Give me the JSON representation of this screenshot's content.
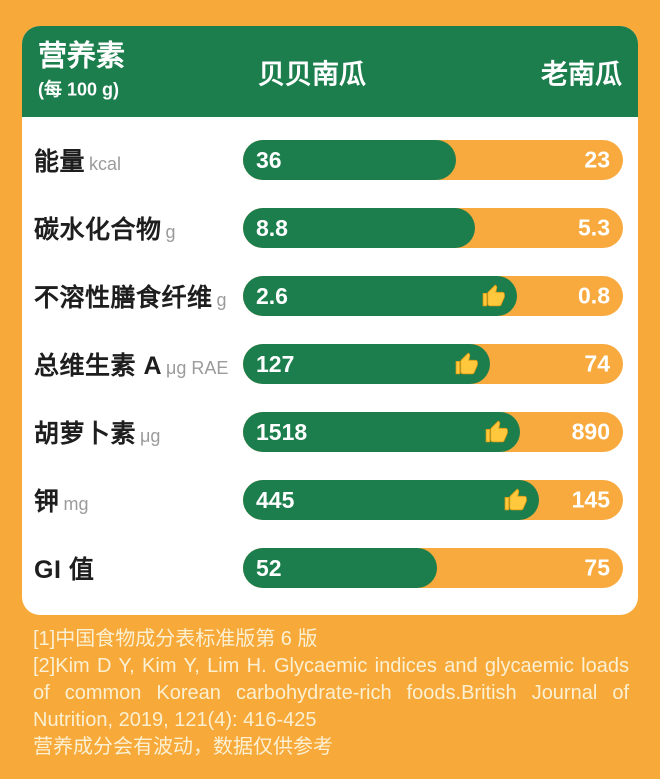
{
  "colors": {
    "background": "#F7A939",
    "green": "#1B7E4C",
    "bar_orange": "#F8AA3E",
    "card": "#FFFFFF",
    "label_text": "#1E1E1E",
    "unit_text": "#9B9B9B",
    "footer_text": "#FBF0D2",
    "thumb_yellow": "#FFC83D"
  },
  "header": {
    "nutrient_label": "营养素",
    "serving_label": "(每 100 g)",
    "col_beibei": "贝贝南瓜",
    "col_laonangua": "老南瓜"
  },
  "rows": [
    {
      "label": "能量",
      "unit": "kcal",
      "left_value": "36",
      "right_value": "23",
      "green_pct": 56,
      "thumb": false
    },
    {
      "label": "碳水化合物",
      "unit": "g",
      "left_value": "8.8",
      "right_value": "5.3",
      "green_pct": 61,
      "thumb": false
    },
    {
      "label": "不溶性膳食纤维",
      "unit": "g",
      "left_value": "2.6",
      "right_value": "0.8",
      "green_pct": 72,
      "thumb": true
    },
    {
      "label": "总维生素 A",
      "unit": "μg RAE",
      "left_value": "127",
      "right_value": "74",
      "green_pct": 65,
      "thumb": true
    },
    {
      "label": "胡萝卜素",
      "unit": "μg",
      "left_value": "1518",
      "right_value": "890",
      "green_pct": 73,
      "thumb": true
    },
    {
      "label": "钾",
      "unit": "mg",
      "left_value": "445",
      "right_value": "145",
      "green_pct": 78,
      "thumb": true
    },
    {
      "label": "GI 值",
      "unit": "",
      "left_value": "52",
      "right_value": "75",
      "green_pct": 51,
      "thumb": false
    }
  ],
  "footnotes": [
    "[1]中国食物成分表标准版第 6 版",
    "[2]Kim D Y, Kim Y, Lim H. Glycaemic indices and glycaemic loads of common Korean carbohydrate-rich foods.British Journal of Nutrition, 2019, 121(4): 416-425",
    "营养成分会有波动，数据仅供参考"
  ],
  "chart_data": {
    "type": "bar",
    "title": "营养素 (每 100 g)",
    "categories": [
      "能量 (kcal)",
      "碳水化合物 (g)",
      "不溶性膳食纤维 (g)",
      "总维生素 A (μg RAE)",
      "胡萝卜素 (μg)",
      "钾 (mg)",
      "GI 值"
    ],
    "series": [
      {
        "name": "贝贝南瓜",
        "values": [
          36,
          8.8,
          2.6,
          127,
          1518,
          445,
          52
        ]
      },
      {
        "name": "老南瓜",
        "values": [
          23,
          5.3,
          0.8,
          74,
          890,
          145,
          75
        ]
      }
    ],
    "thumbs_up_rows": [
      "不溶性膳食纤维 (g)",
      "总维生素 A (μg RAE)",
      "胡萝卜素 (μg)",
      "钾 (mg)"
    ],
    "legend_position": "top",
    "grid": false,
    "orientation": "horizontal-stacked-pills"
  }
}
